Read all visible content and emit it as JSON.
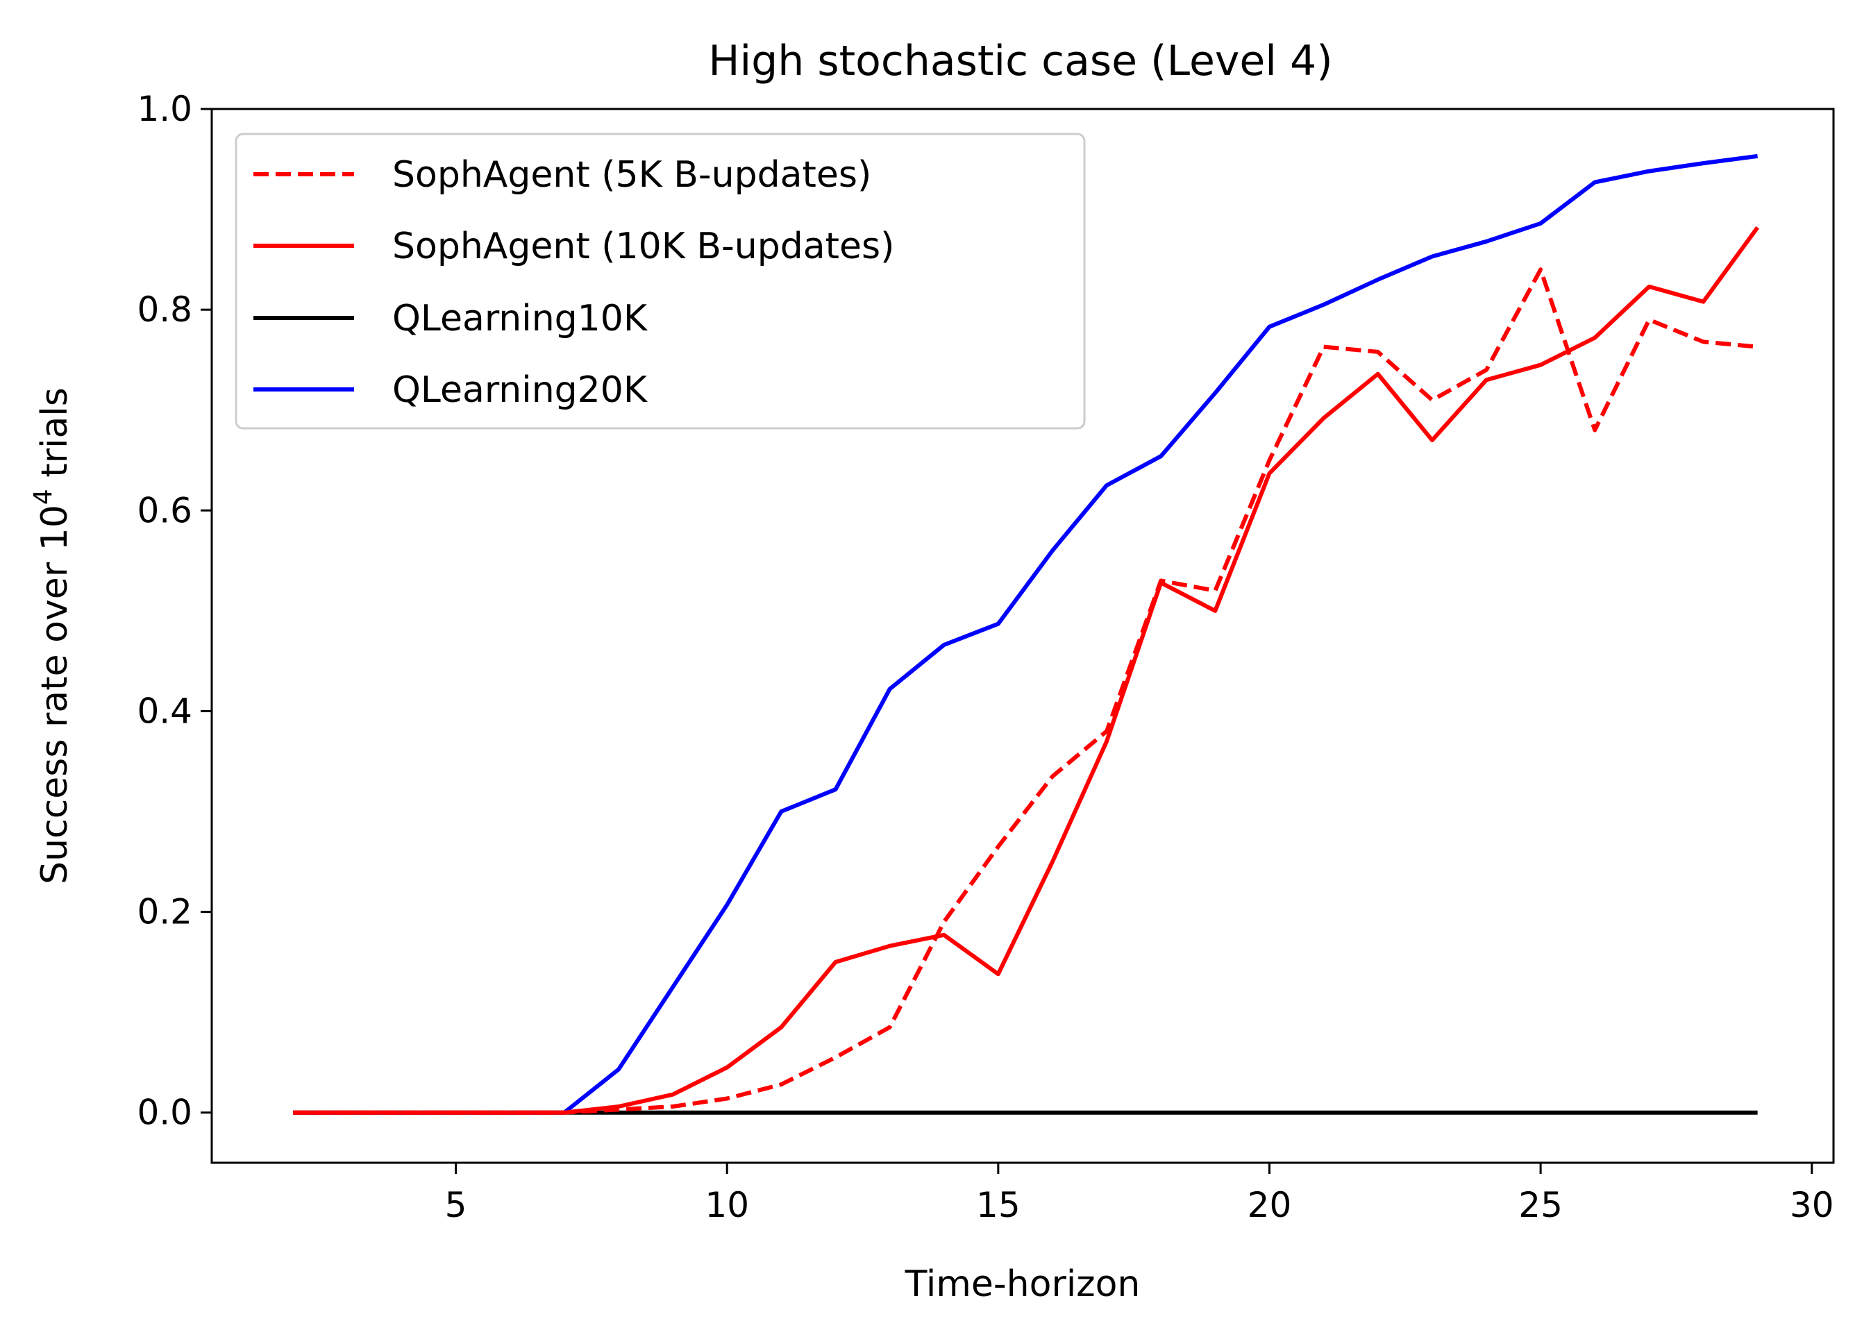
{
  "chart_data": {
    "type": "line",
    "title": "High stochastic case (Level 4)",
    "xlabel": "Time-horizon",
    "ylabel": {
      "main": "Success rate over 10",
      "superscript": "4",
      "suffix": " trials"
    },
    "xlim": [
      0.5,
      30.4
    ],
    "ylim": [
      -0.05,
      1.0
    ],
    "xticks": [
      5,
      10,
      15,
      20,
      25,
      30
    ],
    "xtick_labels": [
      "5",
      "10",
      "15",
      "20",
      "25",
      "30"
    ],
    "yticks": [
      0.0,
      0.2,
      0.4,
      0.6,
      0.8,
      1.0
    ],
    "ytick_labels": [
      "0.0",
      "0.2",
      "0.4",
      "0.6",
      "0.8",
      "1.0"
    ],
    "grid": false,
    "legend_position": "top-left",
    "x": [
      2,
      3,
      4,
      5,
      6,
      7,
      8,
      9,
      10,
      11,
      12,
      13,
      14,
      15,
      16,
      17,
      18,
      19,
      20,
      21,
      22,
      23,
      24,
      25,
      26,
      27,
      28,
      29
    ],
    "series": [
      {
        "name": "SophAgent (5K B-updates)",
        "color": "#ff0000",
        "style": "dashed",
        "values": [
          0,
          0,
          0,
          0,
          0,
          0,
          0.003,
          0.006,
          0.014,
          0.028,
          0.055,
          0.085,
          0.19,
          0.265,
          0.335,
          0.38,
          0.53,
          0.52,
          0.65,
          0.763,
          0.758,
          0.71,
          0.74,
          0.84,
          0.68,
          0.79,
          0.768,
          0.763
        ]
      },
      {
        "name": "SophAgent (10K B-updates)",
        "color": "#ff0000",
        "style": "solid",
        "values": [
          0,
          0,
          0,
          0,
          0,
          0,
          0.006,
          0.018,
          0.045,
          0.085,
          0.15,
          0.166,
          0.177,
          0.138,
          0.25,
          0.37,
          0.528,
          0.5,
          0.637,
          0.692,
          0.736,
          0.67,
          0.73,
          0.745,
          0.772,
          0.823,
          0.808,
          0.882
        ]
      },
      {
        "name": "QLearning10K",
        "color": "#000000",
        "style": "solid",
        "values": [
          0,
          0,
          0,
          0,
          0,
          0,
          0,
          0,
          0,
          0,
          0,
          0,
          0,
          0,
          0,
          0,
          0,
          0,
          0,
          0,
          0,
          0,
          0,
          0,
          0,
          0,
          0,
          0
        ]
      },
      {
        "name": "QLearning20K",
        "color": "#0000ff",
        "style": "solid",
        "values": [
          0,
          0,
          0,
          0,
          0,
          0,
          0.043,
          0.125,
          0.207,
          0.3,
          0.322,
          0.422,
          0.466,
          0.487,
          0.56,
          0.625,
          0.654,
          0.717,
          0.783,
          0.805,
          0.83,
          0.853,
          0.868,
          0.886,
          0.927,
          0.938,
          0.946,
          0.953
        ]
      }
    ]
  }
}
